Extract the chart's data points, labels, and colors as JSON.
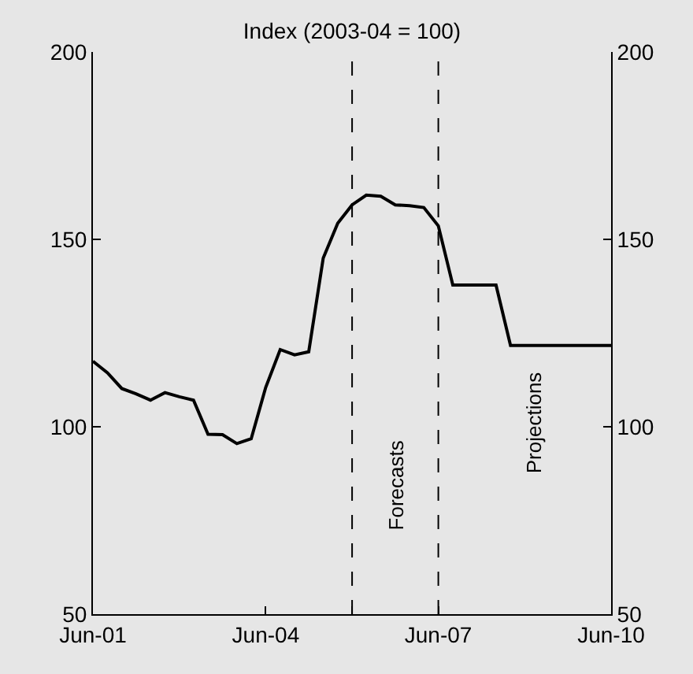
{
  "chart_data": {
    "type": "line",
    "title": "Index (2003-04 = 100)",
    "x": [
      "2001-06",
      "2001-09",
      "2001-12",
      "2002-03",
      "2002-06",
      "2002-09",
      "2002-12",
      "2003-03",
      "2003-06",
      "2003-09",
      "2003-12",
      "2004-03",
      "2004-06",
      "2004-09",
      "2004-12",
      "2005-03",
      "2005-06",
      "2005-09",
      "2005-12",
      "2006-03",
      "2006-06",
      "2006-09",
      "2006-12",
      "2007-03",
      "2007-06",
      "2007-09",
      "2007-12",
      "2008-03",
      "2008-06",
      "2008-09",
      "2008-12",
      "2009-03",
      "2009-06",
      "2009-09",
      "2009-12",
      "2010-03",
      "2010-06"
    ],
    "series": [
      {
        "color": "#000000",
        "values": [
          117.5,
          114.4,
          110.2,
          108.8,
          107.1,
          109.1,
          108.0,
          107.1,
          98.0,
          97.9,
          95.5,
          96.8,
          110.5,
          120.6,
          119.2,
          120.0,
          145.0,
          154.3,
          159.2,
          161.8,
          161.5,
          159.2,
          159.0,
          158.5,
          153.6,
          137.8,
          137.8,
          137.8,
          137.8,
          121.7,
          121.7,
          121.7,
          121.7,
          121.7,
          121.7,
          121.7,
          121.7
        ]
      }
    ],
    "xlim": [
      "2001-06",
      "2010-06"
    ],
    "xticks": [
      {
        "value": "2001-06",
        "label": "Jun-01"
      },
      {
        "value": "2004-06",
        "label": "Jun-04"
      },
      {
        "value": "2005-12",
        "label": null
      },
      {
        "value": "2007-06",
        "label": "Jun-07"
      },
      {
        "value": "2010-06",
        "label": "Jun-10"
      }
    ],
    "ylim": [
      50,
      200
    ],
    "yticks": [
      50,
      100,
      150,
      200
    ],
    "y2lim": [
      50,
      200
    ],
    "y2ticks": [
      50,
      100,
      150,
      200
    ],
    "ref_lines": [
      {
        "axis": "x",
        "value": "2005-12",
        "line_style": "dashed",
        "color": "#000000"
      },
      {
        "axis": "x",
        "value": "2007-06",
        "line_style": "dashed",
        "color": "#000000"
      }
    ],
    "annotations": [
      "Forecasts",
      "Projections"
    ],
    "grid": false,
    "marker": "none",
    "line_style": "solid"
  }
}
